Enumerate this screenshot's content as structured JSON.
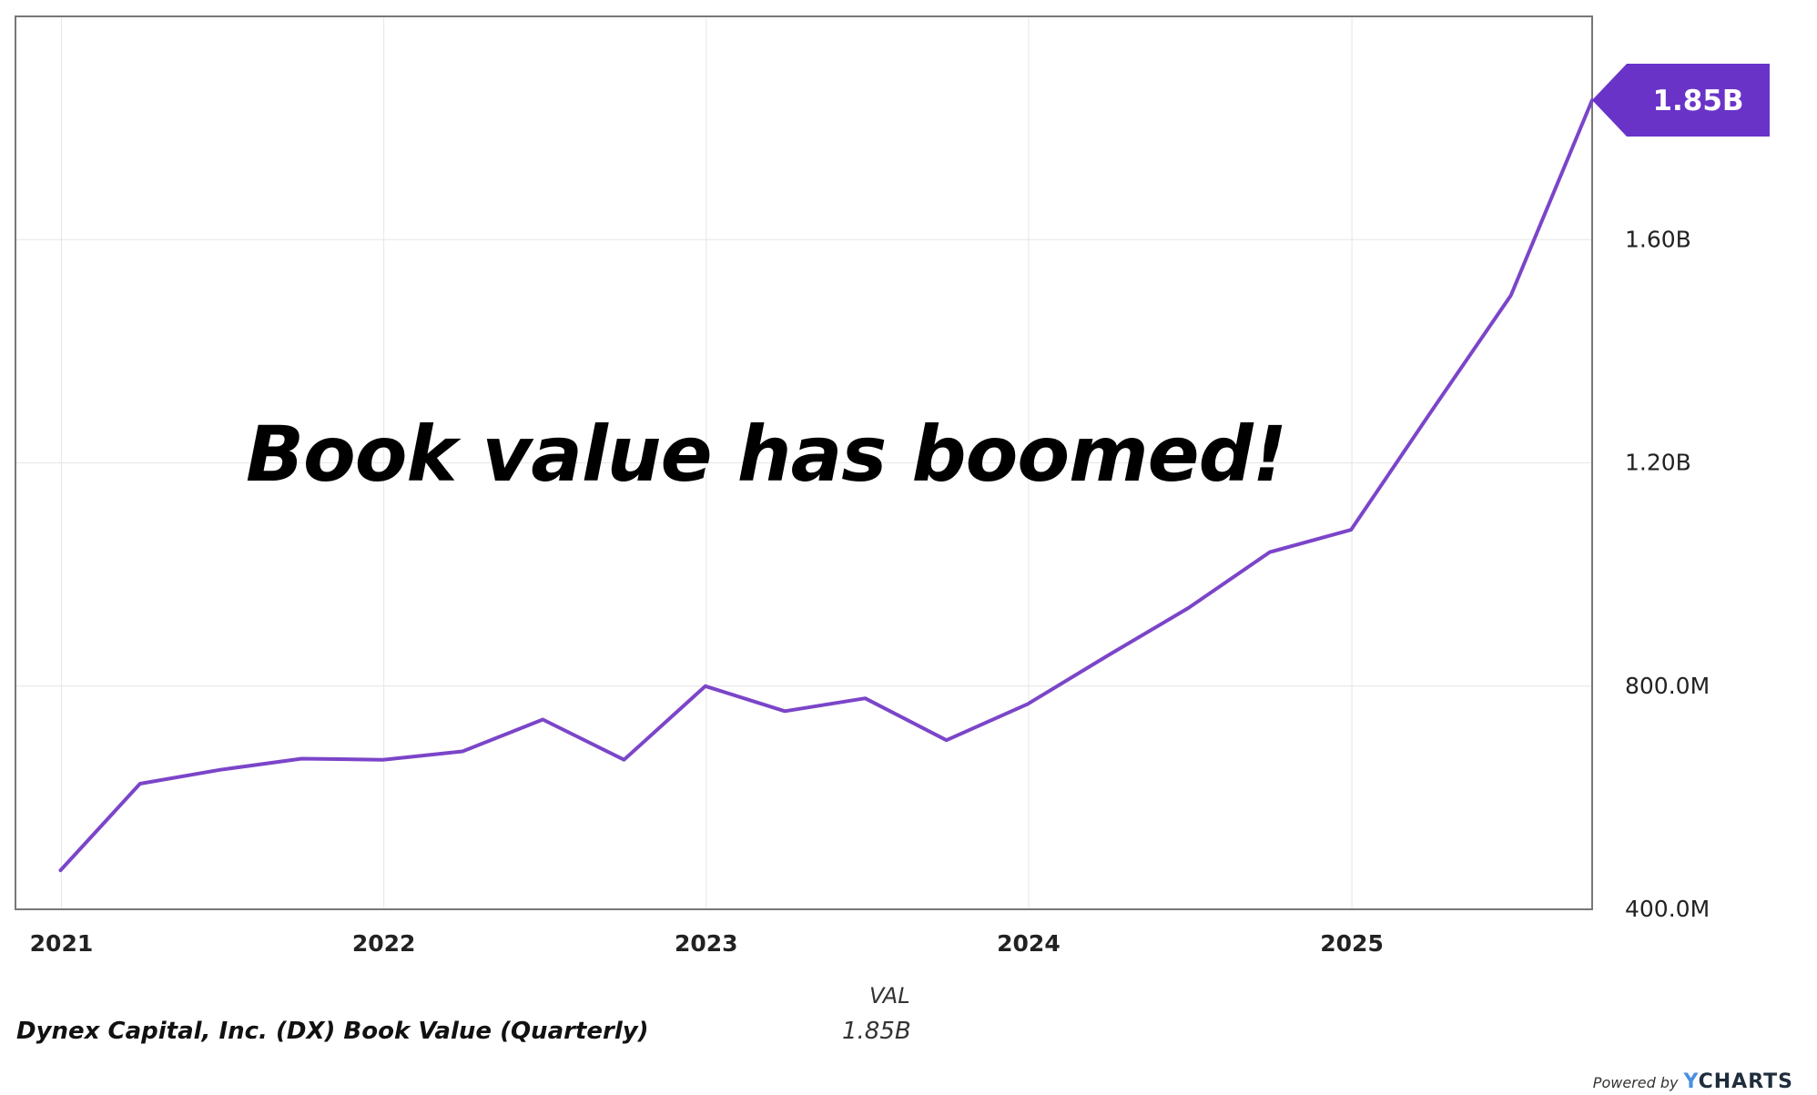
{
  "chart_data": {
    "type": "line",
    "annotation": "Book value has boomed!",
    "series": [
      {
        "name": "Dynex Capital, Inc. (DX) Book Value (Quarterly)",
        "color": "#7b45c9",
        "points": [
          {
            "x": "2020-12-31",
            "y": 470
          },
          {
            "x": "2021-03-31",
            "y": 625
          },
          {
            "x": "2021-06-30",
            "y": 650
          },
          {
            "x": "2021-09-30",
            "y": 670
          },
          {
            "x": "2021-12-31",
            "y": 668
          },
          {
            "x": "2022-03-31",
            "y": 683
          },
          {
            "x": "2022-06-30",
            "y": 740
          },
          {
            "x": "2022-09-30",
            "y": 668
          },
          {
            "x": "2022-12-31",
            "y": 800
          },
          {
            "x": "2023-03-31",
            "y": 755
          },
          {
            "x": "2023-06-30",
            "y": 778
          },
          {
            "x": "2023-09-30",
            "y": 703
          },
          {
            "x": "2023-12-31",
            "y": 768
          },
          {
            "x": "2024-03-31",
            "y": 855
          },
          {
            "x": "2024-06-30",
            "y": 940
          },
          {
            "x": "2024-09-30",
            "y": 1040
          },
          {
            "x": "2024-12-31",
            "y": 1080
          },
          {
            "x": "2025-03-31",
            "y": 1290
          },
          {
            "x": "2025-06-30",
            "y": 1500
          },
          {
            "x": "2025-09-30",
            "y": 1850
          }
        ]
      }
    ],
    "y_unit": "millions USD",
    "x_range": [
      "2020-11-10",
      "2025-09-30"
    ],
    "ylim": [
      400,
      2000
    ],
    "x_ticks": [
      {
        "label": "2021",
        "date": "2021-01-01"
      },
      {
        "label": "2022",
        "date": "2022-01-01"
      },
      {
        "label": "2023",
        "date": "2023-01-01"
      },
      {
        "label": "2024",
        "date": "2024-01-01"
      },
      {
        "label": "2025",
        "date": "2025-01-01"
      }
    ],
    "y_ticks": [
      {
        "label": "400.0M",
        "value": 400
      },
      {
        "label": "800.0M",
        "value": 800
      },
      {
        "label": "1.20B",
        "value": 1200
      },
      {
        "label": "1.60B",
        "value": 1600
      }
    ],
    "last_value_label": "1.85B",
    "grid": true,
    "colors": {
      "line": "#7b45c9",
      "callout": "#6a33c8",
      "grid": "#e6e6e6",
      "frame": "#777777"
    }
  },
  "legend": {
    "column_header": "VAL",
    "series_name": "Dynex Capital, Inc. (DX) Book Value (Quarterly)",
    "series_value": "1.85B"
  },
  "branding": {
    "powered_by": "Powered by",
    "logo_text": "CHARTS",
    "logo_mark": "Y"
  }
}
